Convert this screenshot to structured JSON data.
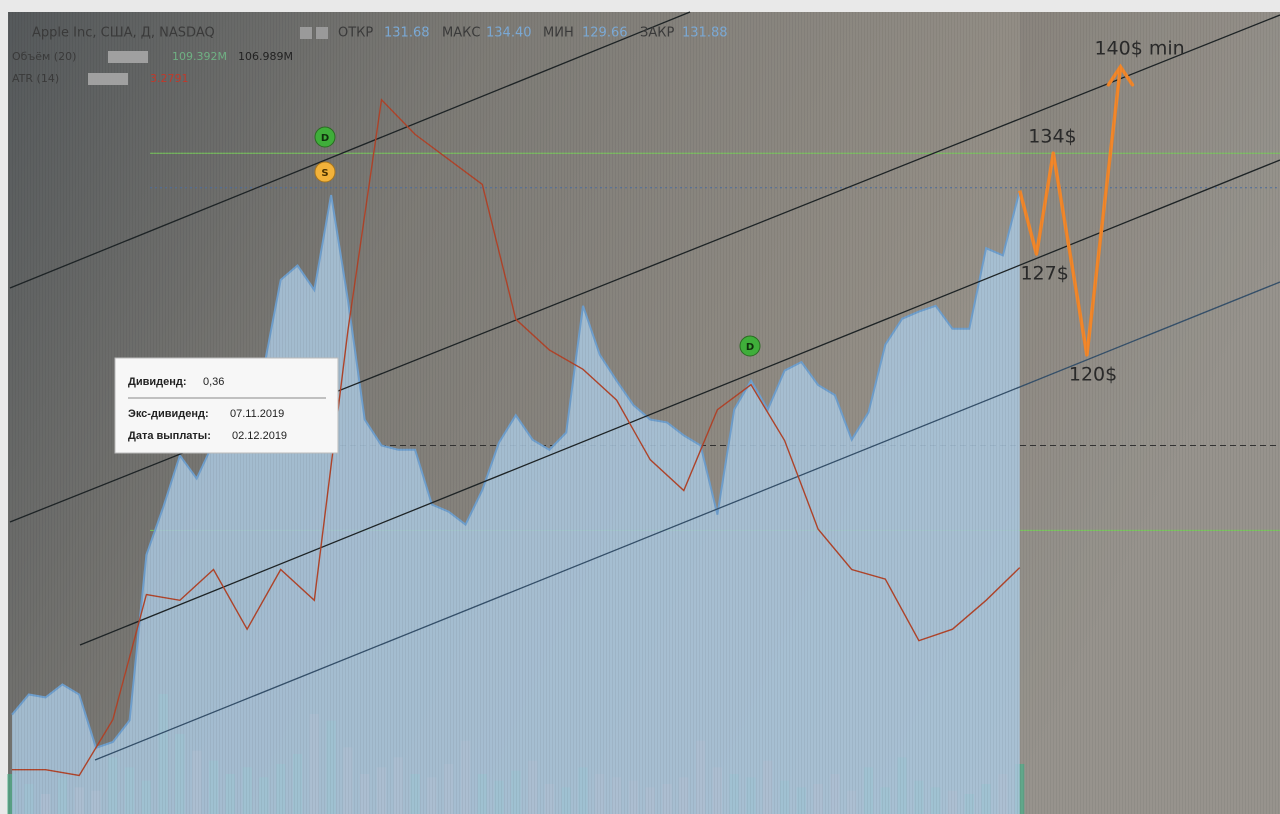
{
  "header": {
    "symbol": "Apple Inc, США, Д, NASDAQ",
    "open_label": "ОТКР",
    "open": "131.68",
    "high_label": "МАКС",
    "high": "134.40",
    "low_label": "МИН",
    "low": "129.66",
    "close_label": "ЗАКР",
    "close": "131.88",
    "volume_label": "Объём (20)",
    "volume_ma": "109.392M",
    "volume": "106.989M",
    "atr_label": "ATR (14)",
    "atr": "3.2791"
  },
  "tooltip": {
    "dividend_label": "Дивиденд:",
    "dividend": "0,36",
    "ex_dividend_label": "Экс-дивиденд:",
    "ex_dividend": "07.11.2019",
    "payment_label": "Дата выплаты:",
    "payment": "02.12.2019"
  },
  "markers": [
    "D",
    "S",
    "D"
  ],
  "chart_data": {
    "type": "area",
    "xlim": [
      0,
      75.5
    ],
    "ylim": [
      88.1,
      143.6
    ],
    "y2lim": [
      2,
      6.15
    ],
    "vlim": [
      0,
      300
    ],
    "price": {
      "color": "#a9c5dc",
      "line_color": "#6f9fcd",
      "values": [
        95.0,
        96.4,
        96.2,
        97.1,
        96.4,
        92.7,
        93.1,
        94.6,
        106.1,
        109.4,
        113.0,
        111.4,
        113.9,
        114.1,
        116.0,
        119.1,
        125.2,
        126.2,
        124.5,
        131.1,
        123.8,
        115.5,
        113.7,
        113.4,
        113.4,
        109.6,
        109.1,
        108.2,
        110.6,
        113.9,
        115.8,
        114.1,
        113.4,
        114.6,
        123.4,
        120.0,
        118.2,
        116.5,
        115.5,
        115.3,
        114.4,
        113.7,
        108.9,
        116.2,
        118.2,
        116.2,
        118.9,
        119.5,
        117.9,
        117.2,
        114.1,
        116.0,
        120.7,
        122.5,
        123.0,
        123.4,
        121.8,
        121.8,
        127.4,
        126.9,
        131.4
      ]
    },
    "atr": {
      "color": "#b0442a",
      "axis": "y2",
      "x": [
        0,
        2,
        4,
        6,
        8,
        10,
        12,
        14,
        16,
        18,
        20,
        22,
        24,
        26,
        28,
        30,
        32,
        34,
        36,
        38,
        40,
        42,
        44,
        46,
        48,
        50,
        52,
        54,
        56,
        58,
        60
      ],
      "values": [
        2.23,
        2.23,
        2.2,
        2.49,
        3.14,
        3.11,
        3.27,
        2.96,
        3.27,
        3.11,
        4.51,
        5.71,
        5.53,
        5.4,
        5.27,
        4.57,
        4.41,
        4.31,
        4.15,
        3.84,
        3.68,
        4.1,
        4.23,
        3.94,
        3.48,
        3.27,
        3.22,
        2.9,
        2.96,
        3.11,
        3.28
      ]
    },
    "volume": {
      "up_color": "#4fae8a",
      "down_color": "#cf8d86",
      "values": [
        60,
        45,
        30,
        55,
        40,
        35,
        85,
        70,
        50,
        180,
        120,
        95,
        80,
        60,
        70,
        55,
        75,
        90,
        150,
        140,
        100,
        60,
        70,
        85,
        60,
        55,
        75,
        110,
        60,
        50,
        65,
        80,
        45,
        40,
        70,
        60,
        55,
        50,
        40,
        45,
        55,
        110,
        70,
        60,
        55,
        80,
        50,
        40,
        45,
        60,
        35,
        70,
        40,
        85,
        50,
        40,
        35,
        30,
        45,
        60,
        75
      ]
    },
    "levels": [
      {
        "value": 134,
        "color": "#79c95c",
        "style": "solid"
      },
      {
        "value": 131.6,
        "color": "#4f6f9e",
        "style": "dotted"
      },
      {
        "value": 113.7,
        "color": "#333333",
        "style": "dashed"
      },
      {
        "value": 107.8,
        "color": "#79c95c",
        "style": "solid"
      }
    ],
    "forecast": {
      "color": "#f2872a",
      "x": [
        60,
        61,
        62,
        64,
        66
      ],
      "values": [
        131.4,
        127,
        134,
        120,
        140
      ],
      "value_labels": [
        null,
        "127$",
        "134$",
        "120$",
        "140$ min"
      ]
    }
  }
}
